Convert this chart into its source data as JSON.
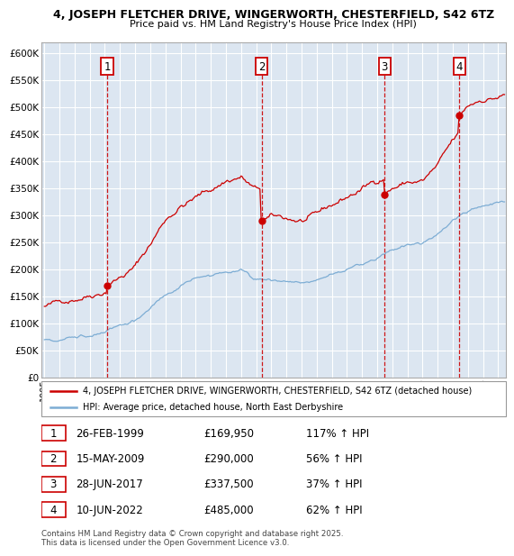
{
  "title_line1": "4, JOSEPH FLETCHER DRIVE, WINGERWORTH, CHESTERFIELD, S42 6TZ",
  "title_line2": "Price paid vs. HM Land Registry's House Price Index (HPI)",
  "ytick_values": [
    0,
    50000,
    100000,
    150000,
    200000,
    250000,
    300000,
    350000,
    400000,
    450000,
    500000,
    550000,
    600000
  ],
  "ylim": [
    0,
    620000
  ],
  "xlim_start": 1994.8,
  "xlim_end": 2025.5,
  "background_color": "#dce6f1",
  "grid_color": "#ffffff",
  "sale_color": "#cc0000",
  "hpi_color": "#7dadd4",
  "sale_label": "4, JOSEPH FLETCHER DRIVE, WINGERWORTH, CHESTERFIELD, S42 6TZ (detached house)",
  "hpi_label": "HPI: Average price, detached house, North East Derbyshire",
  "transactions": [
    {
      "num": 1,
      "date_str": "26-FEB-1999",
      "date_x": 1999.15,
      "price": 169950,
      "hpi_pct": "117%"
    },
    {
      "num": 2,
      "date_str": "15-MAY-2009",
      "date_x": 2009.37,
      "price": 290000,
      "hpi_pct": "56%"
    },
    {
      "num": 3,
      "date_str": "28-JUN-2017",
      "date_x": 2017.49,
      "price": 337500,
      "hpi_pct": "37%"
    },
    {
      "num": 4,
      "date_str": "10-JUN-2022",
      "date_x": 2022.44,
      "price": 485000,
      "hpi_pct": "62%"
    }
  ],
  "footnote_line1": "Contains HM Land Registry data © Crown copyright and database right 2025.",
  "footnote_line2": "This data is licensed under the Open Government Licence v3.0.",
  "xtick_years": [
    1995,
    1996,
    1997,
    1998,
    1999,
    2000,
    2001,
    2002,
    2003,
    2004,
    2005,
    2006,
    2007,
    2008,
    2009,
    2010,
    2011,
    2012,
    2013,
    2014,
    2015,
    2016,
    2017,
    2018,
    2019,
    2020,
    2021,
    2022,
    2023,
    2024,
    2025
  ]
}
